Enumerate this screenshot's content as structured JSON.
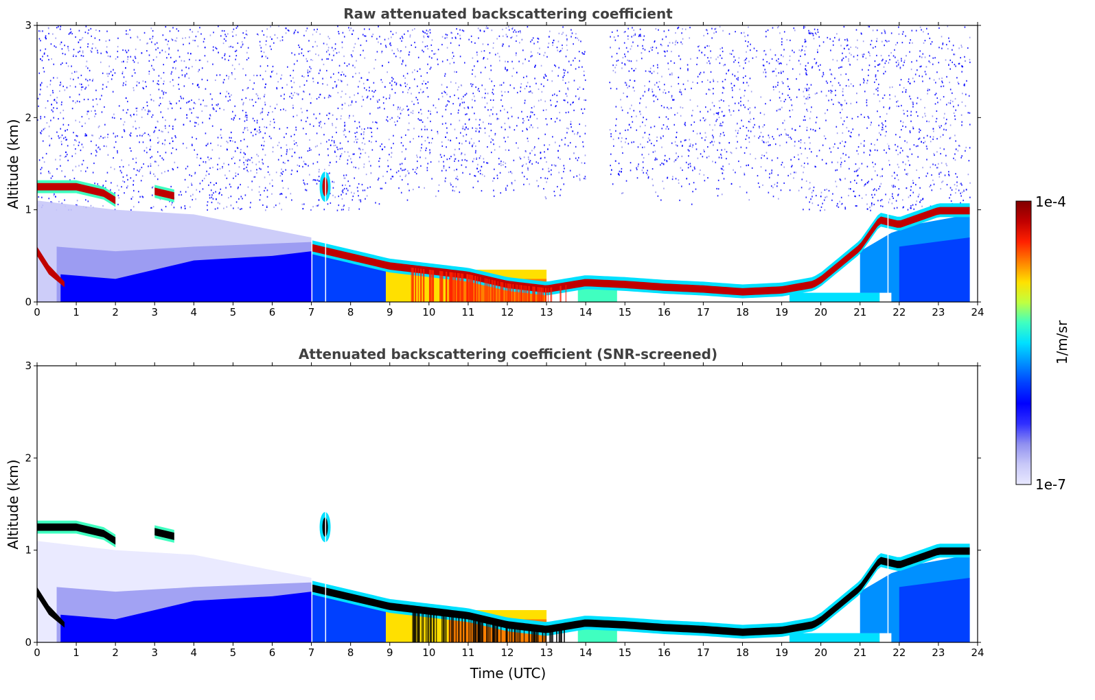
{
  "chart_data": [
    {
      "type": "heatmap",
      "title": "Raw attenuated backscattering coefficient",
      "xlabel": "",
      "ylabel": "Altitude (km)",
      "xlim": [
        0,
        24
      ],
      "ylim": [
        0,
        3
      ],
      "xticks": [
        "0",
        "1",
        "2",
        "3",
        "4",
        "5",
        "6",
        "7",
        "8",
        "9",
        "10",
        "11",
        "12",
        "13",
        "14",
        "15",
        "16",
        "17",
        "18",
        "19",
        "20",
        "21",
        "22",
        "23",
        "24"
      ],
      "yticks": [
        "0",
        "1",
        "2",
        "3"
      ],
      "screened": false,
      "layers": [
        {
          "name": "top_layer",
          "points": [
            [
              0,
              1.25
            ],
            [
              1,
              1.25
            ],
            [
              1.7,
              1.18
            ],
            [
              2.0,
              1.1
            ]
          ]
        },
        {
          "name": "top_layer_b",
          "points": [
            [
              3.0,
              1.2
            ],
            [
              3.5,
              1.15
            ]
          ]
        },
        {
          "name": "boundary_layer",
          "points": [
            [
              7.0,
              0.6
            ],
            [
              8,
              0.5
            ],
            [
              9,
              0.4
            ],
            [
              10,
              0.35
            ],
            [
              11,
              0.3
            ],
            [
              12,
              0.2
            ],
            [
              13,
              0.15
            ],
            [
              14,
              0.22
            ],
            [
              15,
              0.2
            ],
            [
              16,
              0.17
            ],
            [
              17,
              0.15
            ],
            [
              18,
              0.12
            ],
            [
              19,
              0.14
            ],
            [
              19.8,
              0.2
            ],
            [
              20,
              0.25
            ],
            [
              21,
              0.6
            ],
            [
              21.5,
              0.9
            ],
            [
              22,
              0.85
            ],
            [
              23,
              1.0
            ],
            [
              23.8,
              1.0
            ]
          ]
        }
      ]
    },
    {
      "type": "heatmap",
      "title": "Attenuated backscattering coefficient (SNR-screened)",
      "xlabel": "Time (UTC)",
      "ylabel": "Altitude (km)",
      "xlim": [
        0,
        24
      ],
      "ylim": [
        0,
        3
      ],
      "xticks": [
        "0",
        "1",
        "2",
        "3",
        "4",
        "5",
        "6",
        "7",
        "8",
        "9",
        "10",
        "11",
        "12",
        "13",
        "14",
        "15",
        "16",
        "17",
        "18",
        "19",
        "20",
        "21",
        "22",
        "23",
        "24"
      ],
      "yticks": [
        "0",
        "1",
        "2",
        "3"
      ],
      "screened": true
    }
  ],
  "colorbar": {
    "label": "1/m/sr",
    "max_label": "1e-4",
    "min_label": "1e-7",
    "min": 1e-07,
    "max": 0.0001,
    "scale": "log",
    "colormap": "jet",
    "colors": [
      "#e8e8ff",
      "#c8c8f8",
      "#9090f0",
      "#3030ff",
      "#0000ff",
      "#0040ff",
      "#0090ff",
      "#00e0ff",
      "#40ffc0",
      "#c0ff40",
      "#ffe000",
      "#ff8000",
      "#ff2000",
      "#c00000",
      "#800000"
    ]
  }
}
